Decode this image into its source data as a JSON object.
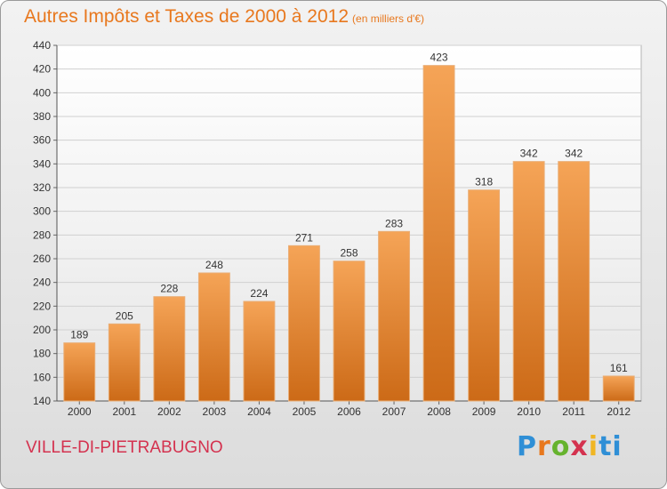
{
  "title": "Autres Impôts et Taxes de 2000 à 2012",
  "subtitle": "(en milliers d'€)",
  "city": "VILLE-DI-PIETRABUGNO",
  "logo": {
    "text": "Proxiti",
    "colors": [
      "#2f8fd6",
      "#e8781e",
      "#66b32e",
      "#d4324f",
      "#f0b623",
      "#2f8fd6"
    ]
  },
  "chart_data": {
    "type": "bar",
    "title": "Autres Impôts et Taxes de 2000 à 2012",
    "subtitle": "(en milliers d'€)",
    "categories": [
      "2000",
      "2001",
      "2002",
      "2003",
      "2004",
      "2005",
      "2006",
      "2007",
      "2008",
      "2009",
      "2010",
      "2011",
      "2012"
    ],
    "values": [
      189,
      205,
      228,
      248,
      224,
      271,
      258,
      283,
      423,
      318,
      342,
      342,
      161
    ],
    "ylim": [
      140,
      440
    ],
    "yticks": [
      140,
      160,
      180,
      200,
      220,
      240,
      260,
      280,
      300,
      320,
      340,
      360,
      380,
      400,
      420,
      440
    ],
    "grid": true,
    "bar_color": "#e8822b",
    "legend": "none"
  }
}
